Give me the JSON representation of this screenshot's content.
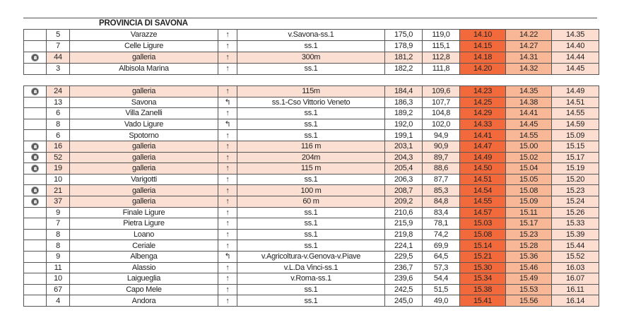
{
  "title": "PROVINCIA DI SAVONA",
  "colors": {
    "time1": "#f26a3c",
    "time2": "#f8b898",
    "time3": "#fcddd0",
    "tunnel_row": "#fcdfd3"
  },
  "tables": [
    [
      {
        "tunnel": false,
        "km": "5",
        "place": "Varazze",
        "dir": "↑",
        "road": "v.Savona-ss.1",
        "d1": "175,0",
        "d2": "119,0",
        "t1": "14.10",
        "t2": "14.22",
        "t3": "14.35"
      },
      {
        "tunnel": false,
        "km": "7",
        "place": "Celle Ligure",
        "dir": "↑",
        "road": "ss.1",
        "d1": "178,9",
        "d2": "115,1",
        "t1": "14.15",
        "t2": "14.27",
        "t3": "14.40"
      },
      {
        "tunnel": true,
        "km": "44",
        "place": "galleria",
        "dir": "↑",
        "road": "300m",
        "d1": "181,2",
        "d2": "112,8",
        "t1": "14.18",
        "t2": "14.31",
        "t3": "14.44"
      },
      {
        "tunnel": false,
        "km": "3",
        "place": "Albisola Marina",
        "dir": "↑",
        "road": "ss.1",
        "d1": "182,2",
        "d2": "111,8",
        "t1": "14.20",
        "t2": "14.32",
        "t3": "14.45"
      }
    ],
    [
      {
        "tunnel": true,
        "km": "24",
        "place": "galleria",
        "dir": "↑",
        "road": "115m",
        "d1": "184,4",
        "d2": "109,6",
        "t1": "14.23",
        "t2": "14.35",
        "t3": "14.49"
      },
      {
        "tunnel": false,
        "km": "13",
        "place": "Savona",
        "dir": "↰",
        "road": "ss.1-Cso Vittorio Veneto",
        "d1": "186,3",
        "d2": "107,7",
        "t1": "14.25",
        "t2": "14.38",
        "t3": "14.51"
      },
      {
        "tunnel": false,
        "km": "6",
        "place": "Villa Zanelli",
        "dir": "↑",
        "road": "ss.1",
        "d1": "189,2",
        "d2": "104,8",
        "t1": "14.29",
        "t2": "14.41",
        "t3": "14.55"
      },
      {
        "tunnel": false,
        "km": "8",
        "place": "Vado Ligure",
        "dir": "↰",
        "road": "ss.1",
        "d1": "192,0",
        "d2": "102,0",
        "t1": "14.33",
        "t2": "14.45",
        "t3": "14.59"
      },
      {
        "tunnel": false,
        "km": "6",
        "place": "Spotorno",
        "dir": "↑",
        "road": "ss.1",
        "d1": "199,1",
        "d2": "94,9",
        "t1": "14.41",
        "t2": "14.55",
        "t3": "15.09"
      },
      {
        "tunnel": true,
        "km": "16",
        "place": "galleria",
        "dir": "↑",
        "road": "116 m",
        "d1": "203,1",
        "d2": "90,9",
        "t1": "14.47",
        "t2": "15.00",
        "t3": "15.15"
      },
      {
        "tunnel": true,
        "km": "52",
        "place": "galleria",
        "dir": "↑",
        "road": "204m",
        "d1": "204,3",
        "d2": "89,7",
        "t1": "14.49",
        "t2": "15.02",
        "t3": "15.17"
      },
      {
        "tunnel": true,
        "km": "19",
        "place": "galleria",
        "dir": "↑",
        "road": "115 m",
        "d1": "205,4",
        "d2": "88,6",
        "t1": "14.50",
        "t2": "15.04",
        "t3": "15.19"
      },
      {
        "tunnel": false,
        "km": "10",
        "place": "Varigotti",
        "dir": "↑",
        "road": "ss.1",
        "d1": "206,3",
        "d2": "87,7",
        "t1": "14.51",
        "t2": "15.05",
        "t3": "15.20"
      },
      {
        "tunnel": true,
        "km": "21",
        "place": "galleria",
        "dir": "↑",
        "road": "100 m",
        "d1": "208,7",
        "d2": "85,3",
        "t1": "14.54",
        "t2": "15.08",
        "t3": "15.23"
      },
      {
        "tunnel": true,
        "km": "37",
        "place": "galleria",
        "dir": "↑",
        "road": "60 m",
        "d1": "209,2",
        "d2": "84,8",
        "t1": "14.55",
        "t2": "15.09",
        "t3": "15.24"
      },
      {
        "tunnel": false,
        "km": "9",
        "place": "Finale Ligure",
        "dir": "↑",
        "road": "ss.1",
        "d1": "210,6",
        "d2": "83,4",
        "t1": "14.57",
        "t2": "15.11",
        "t3": "15.26"
      },
      {
        "tunnel": false,
        "km": "7",
        "place": "Pietra Ligure",
        "dir": "↑",
        "road": "ss.1",
        "d1": "215,9",
        "d2": "78,1",
        "t1": "15.03",
        "t2": "15.17",
        "t3": "15.33"
      },
      {
        "tunnel": false,
        "km": "8",
        "place": "Loano",
        "dir": "↑",
        "road": "ss.1",
        "d1": "219,8",
        "d2": "74,2",
        "t1": "15.08",
        "t2": "15.23",
        "t3": "15.39"
      },
      {
        "tunnel": false,
        "km": "8",
        "place": "Ceriale",
        "dir": "↑",
        "road": "ss.1",
        "d1": "224,1",
        "d2": "69,9",
        "t1": "15.14",
        "t2": "15.28",
        "t3": "15.44"
      },
      {
        "tunnel": false,
        "km": "9",
        "place": "Albenga",
        "dir": "↰",
        "road": "v.Agricoltura-v.Genova-v.Piave",
        "d1": "229,5",
        "d2": "64,5",
        "t1": "15.21",
        "t2": "15.36",
        "t3": "15.52"
      },
      {
        "tunnel": false,
        "km": "11",
        "place": "Alassio",
        "dir": "↑",
        "road": "v.L.Da Vinci-ss.1",
        "d1": "236,7",
        "d2": "57,3",
        "t1": "15.30",
        "t2": "15.46",
        "t3": "16.03"
      },
      {
        "tunnel": false,
        "km": "10",
        "place": "Laigueglia",
        "dir": "↑",
        "road": "v.Roma-ss.1",
        "d1": "239,6",
        "d2": "54,4",
        "t1": "15.34",
        "t2": "15.49",
        "t3": "16.07"
      },
      {
        "tunnel": false,
        "km": "67",
        "place": "Capo Mele",
        "dir": "↑",
        "road": "ss.1",
        "d1": "242,5",
        "d2": "51,5",
        "t1": "15.38",
        "t2": "15.53",
        "t3": "16.11"
      },
      {
        "tunnel": false,
        "km": "4",
        "place": "Andora",
        "dir": "↑",
        "road": "ss.1",
        "d1": "245,0",
        "d2": "49,0",
        "t1": "15.41",
        "t2": "15.56",
        "t3": "16.14"
      }
    ]
  ]
}
